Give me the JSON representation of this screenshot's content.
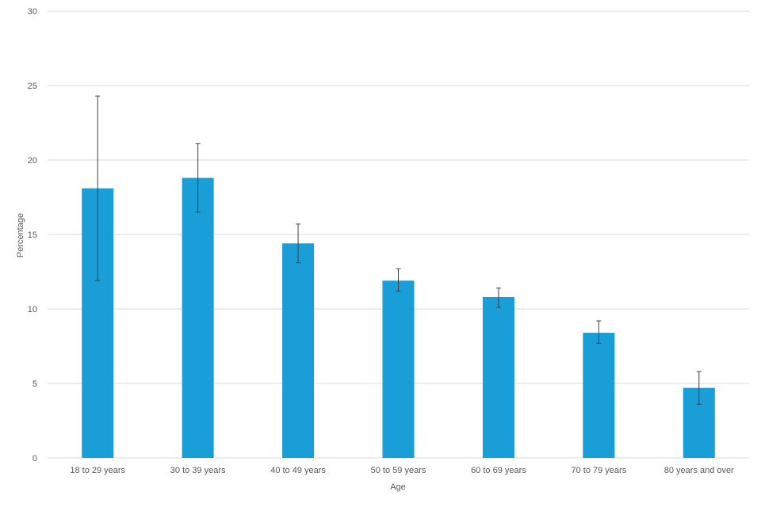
{
  "chart_data": {
    "type": "bar",
    "title": "",
    "xlabel": "Age",
    "ylabel": "Percentage",
    "categories": [
      "18 to 29 years",
      "30 to 39 years",
      "40 to 49 years",
      "50 to 59 years",
      "60 to 69 years",
      "70 to 79 years",
      "80 years and over"
    ],
    "series": [
      {
        "values": [
          18.1,
          18.8,
          14.4,
          11.9,
          10.8,
          8.4,
          4.7
        ],
        "error_lower": [
          11.9,
          16.5,
          13.1,
          11.2,
          10.1,
          7.7,
          3.6
        ],
        "error_upper": [
          24.3,
          21.1,
          15.7,
          12.7,
          11.4,
          9.2,
          5.8
        ]
      }
    ],
    "ylim": [
      0,
      30
    ],
    "yticks": [
      0,
      5,
      10,
      15,
      20,
      25,
      30
    ],
    "grid": true,
    "legend": "none",
    "bar_color": "#1a9ed8",
    "error_bar_color": "#404040",
    "gridline_color": "#d9d9d9",
    "text_color": "#595959"
  }
}
